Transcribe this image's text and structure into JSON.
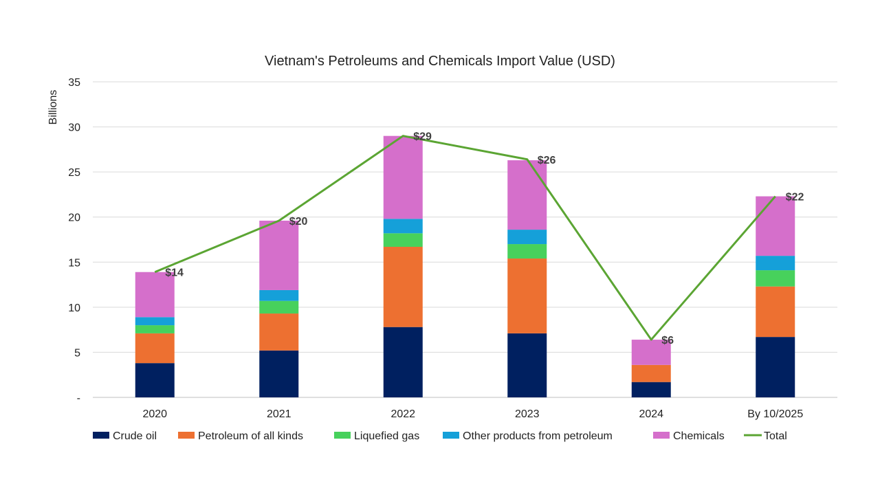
{
  "chart_data": {
    "type": "bar",
    "stacked": true,
    "title": "Vietnam's Petroleums and Chemicals Import Value (USD)",
    "xlabel": "",
    "ylabel": "Billions",
    "ylim": [
      0,
      35
    ],
    "yticks": [
      {
        "value": 0,
        "label": "-"
      },
      {
        "value": 5,
        "label": "5"
      },
      {
        "value": 10,
        "label": "10"
      },
      {
        "value": 15,
        "label": "15"
      },
      {
        "value": 20,
        "label": "20"
      },
      {
        "value": 25,
        "label": "25"
      },
      {
        "value": 30,
        "label": "30"
      },
      {
        "value": 35,
        "label": "35"
      }
    ],
    "grid": true,
    "legend_position": "bottom",
    "categories": [
      "2020",
      "2021",
      "2022",
      "2023",
      "2024",
      "By 10/2025"
    ],
    "series": [
      {
        "name": "Crude oil",
        "type": "bar",
        "color": "#002060",
        "values": [
          3.8,
          5.2,
          7.8,
          7.1,
          1.7,
          6.7
        ]
      },
      {
        "name": "Petroleum of all kinds",
        "type": "bar",
        "color": "#ED7031",
        "values": [
          3.3,
          4.1,
          8.9,
          8.3,
          1.9,
          5.6
        ]
      },
      {
        "name": "Liquefied gas",
        "type": "bar",
        "color": "#47D15C",
        "values": [
          0.9,
          1.4,
          1.5,
          1.6,
          0.0,
          1.8
        ]
      },
      {
        "name": "Other products from petroleum",
        "type": "bar",
        "color": "#15A0D9",
        "values": [
          0.9,
          1.2,
          1.6,
          1.6,
          0.0,
          1.6
        ]
      },
      {
        "name": "Chemicals",
        "type": "bar",
        "color": "#D56FCB",
        "values": [
          5.0,
          7.7,
          9.2,
          7.7,
          2.8,
          6.6
        ]
      },
      {
        "name": "Total",
        "type": "line",
        "color": "#5BA533",
        "values": [
          13.9,
          19.6,
          29.0,
          26.4,
          6.4,
          22.3
        ]
      }
    ],
    "data_labels": [
      "$14",
      "$20",
      "$29",
      "$26",
      "$6",
      "$22"
    ]
  }
}
